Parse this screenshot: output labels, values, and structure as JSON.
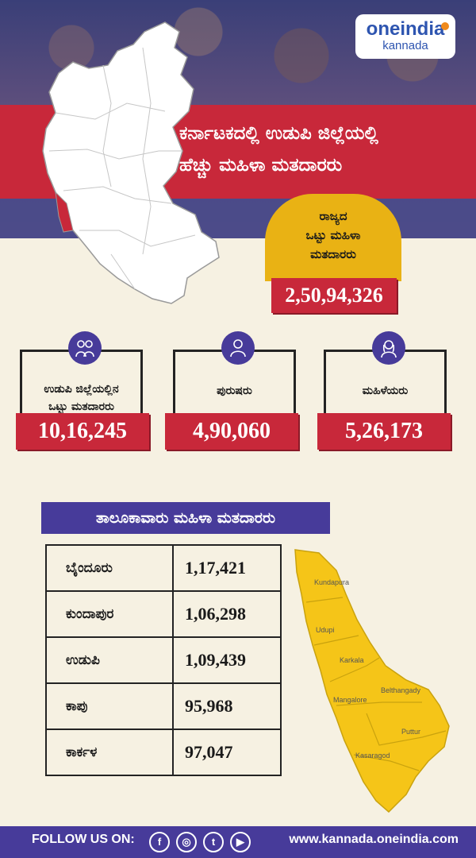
{
  "brand": {
    "line1": "oneindia",
    "line2": "kannada"
  },
  "headline": {
    "line1": "ಕರ್ನಾಟಕದಲ್ಲಿ ಉಡುಪಿ ಜಿಲ್ಲೆಯಲ್ಲಿ",
    "line2": "ಹೆಚ್ಚು ಮಹಿಳಾ ಮತದಾರರು"
  },
  "state_total": {
    "line1": "ರಾಜ್ಯದ",
    "line2": "ಒಟ್ಟು ಮಹಿಳಾ",
    "line3": "ಮತದಾರರು",
    "value": "2,50,94,326"
  },
  "cards": [
    {
      "label_line1": "ಉಡುಪಿ ಜಿಲ್ಲೆಯಲ್ಲಿನ",
      "label_line2": "ಒಟ್ಟು ಮತದಾರರು",
      "value": "10,16,245",
      "icon": "group-icon"
    },
    {
      "label_line1": "ಪುರುಷರು",
      "label_line2": "",
      "value": "4,90,060",
      "icon": "man-icon"
    },
    {
      "label_line1": "ಮಹಿಳೆಯರು",
      "label_line2": "",
      "value": "5,26,173",
      "icon": "woman-icon"
    }
  ],
  "taluk_heading": "ತಾಲೂಕಾವಾರು ಮಹಿಳಾ ಮತದಾರರು",
  "taluks": [
    {
      "name": "ಬೈಂದೂರು",
      "value": "1,17,421"
    },
    {
      "name": "ಕುಂದಾಪುರ",
      "value": "1,06,298"
    },
    {
      "name": "ಉಡುಪಿ",
      "value": "1,09,439"
    },
    {
      "name": "ಕಾಪು",
      "value": "95,968"
    },
    {
      "name": "ಕಾರ್ಕಳ",
      "value": "97,047"
    }
  ],
  "map_labels": [
    "Kundapura",
    "Udupi",
    "Karkala",
    "Mangalore",
    "Belthangady",
    "Puttur",
    "Kasaragod"
  ],
  "footer": {
    "follow": "FOLLOW US ON:",
    "url": "www.kannada.oneindia.com"
  },
  "colors": {
    "red": "#c8283a",
    "purple": "#473b9a",
    "yellow": "#e9b214",
    "cream": "#f6f1e2"
  }
}
